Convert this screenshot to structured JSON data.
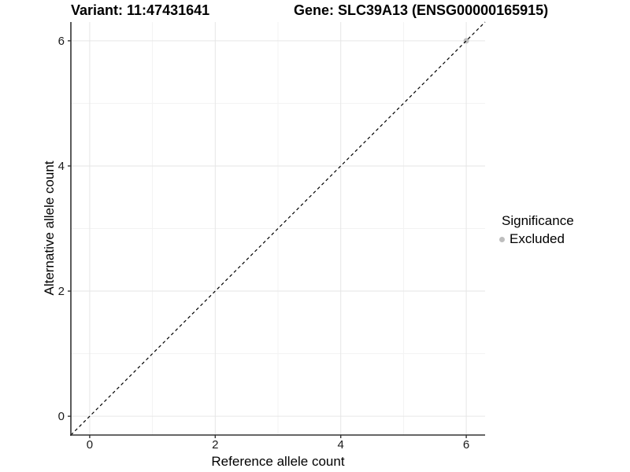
{
  "header": {
    "variant_title": "Variant: 11:47431641",
    "gene_title": "Gene: SLC39A13 (ENSG00000165915)"
  },
  "chart_data": {
    "type": "scatter",
    "xlabel": "Reference allele count",
    "ylabel": "Alternative allele count",
    "xlim": [
      -0.3,
      6.3
    ],
    "ylim": [
      -0.3,
      6.3
    ],
    "x_ticks": [
      0,
      2,
      4,
      6
    ],
    "y_ticks": [
      0,
      2,
      4,
      6
    ],
    "x_minor_ticks": [
      1,
      3,
      5
    ],
    "y_minor_ticks": [
      1,
      3,
      5
    ],
    "grid": true,
    "points": [
      {
        "x": 6,
        "y": 6,
        "series": "Excluded"
      }
    ],
    "reference_line": {
      "slope": 1,
      "intercept": 0,
      "style": "dashed",
      "color": "#000000"
    },
    "legend": {
      "position": "right",
      "title": "Significance",
      "items": [
        {
          "label": "Excluded",
          "color": "#bebebe"
        }
      ]
    },
    "colors": {
      "point": "#bebebe",
      "grid_major": "#e6e6e6",
      "grid_minor": "#f3f3f3",
      "axis": "#333333",
      "text": "#000000"
    }
  }
}
